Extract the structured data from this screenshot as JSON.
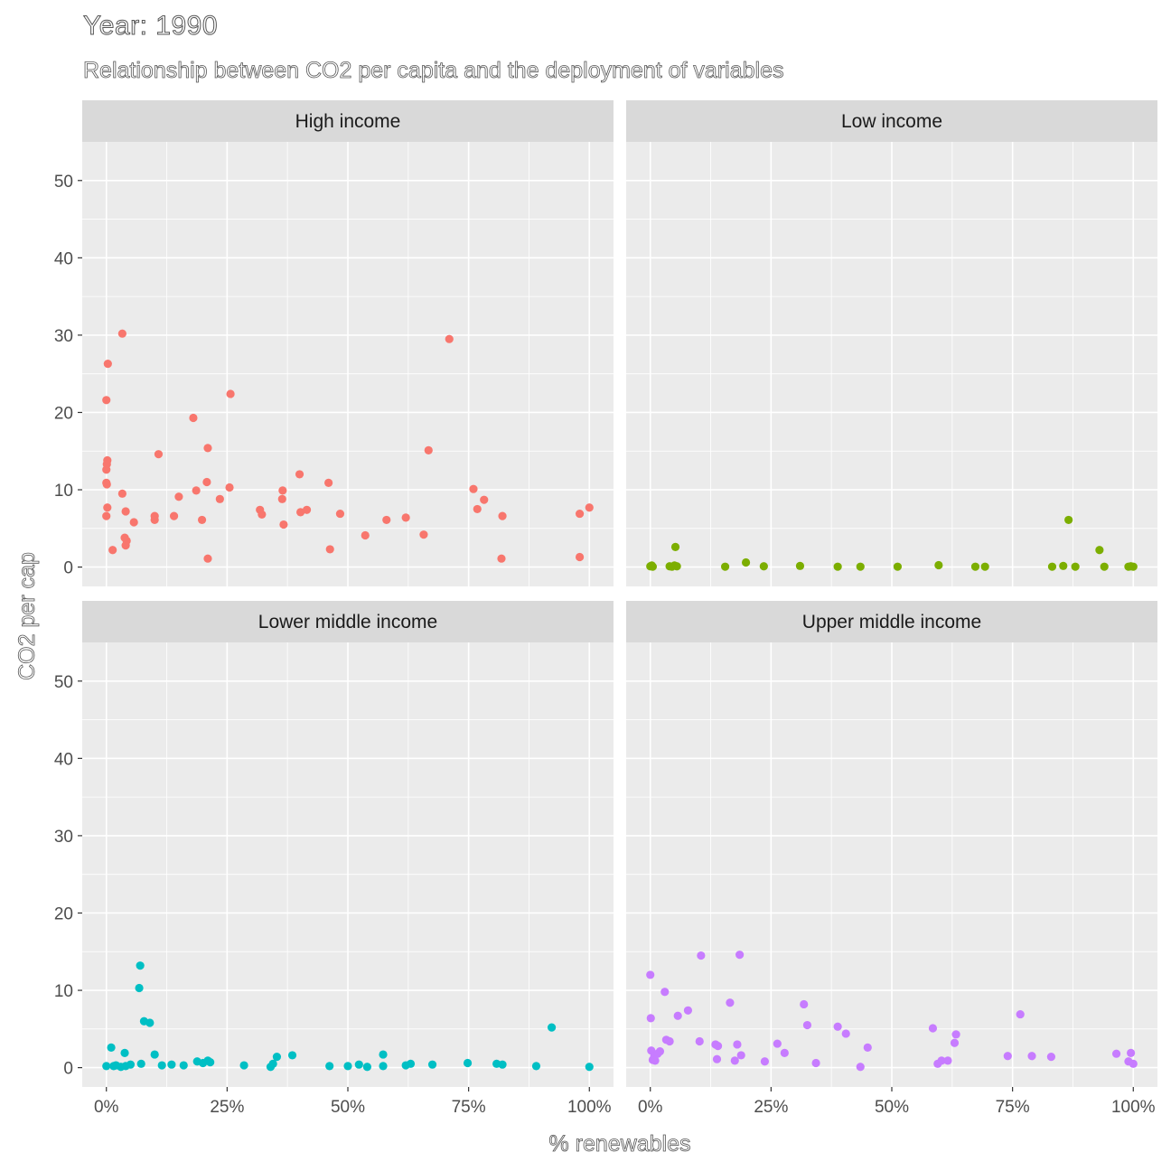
{
  "title": "Year: 1990",
  "subtitle": "Relationship between CO2 per capita and the deployment of variables",
  "colors": {
    "panel_bg": "#ebebeb",
    "strip_bg": "#d9d9d9",
    "grid": "#ffffff",
    "high_income": "#f8766d",
    "low_income": "#7cae00",
    "lower_middle_income": "#00bfc4",
    "upper_middle_income": "#c77cff"
  },
  "chart_data": {
    "type": "scatter",
    "xlabel": "% renewables",
    "ylabel": "CO2 per cap",
    "xlim": [
      -0.05,
      1.05
    ],
    "ylim": [
      -2.5,
      55
    ],
    "x_ticks": [
      0,
      0.25,
      0.5,
      0.75,
      1
    ],
    "x_tick_labels": [
      "0%",
      "25%",
      "50%",
      "75%",
      "100%"
    ],
    "y_ticks": [
      0,
      10,
      20,
      30,
      40,
      50
    ],
    "y_tick_labels": [
      "0",
      "10",
      "20",
      "30",
      "40",
      "50"
    ],
    "grid": true,
    "facets": [
      {
        "name": "High income",
        "color": "#f8766d",
        "points": [
          [
            0.003,
            26.3
          ],
          [
            0.0,
            21.6
          ],
          [
            0.002,
            13.8
          ],
          [
            0.001,
            13.3
          ],
          [
            0.0,
            12.6
          ],
          [
            0.0,
            10.9
          ],
          [
            0.001,
            10.7
          ],
          [
            0.002,
            7.7
          ],
          [
            0.0,
            6.6
          ],
          [
            0.033,
            30.2
          ],
          [
            0.033,
            9.5
          ],
          [
            0.04,
            7.2
          ],
          [
            0.038,
            3.8
          ],
          [
            0.042,
            3.4
          ],
          [
            0.04,
            2.8
          ],
          [
            0.013,
            2.2
          ],
          [
            0.057,
            5.8
          ],
          [
            0.108,
            14.6
          ],
          [
            0.1,
            6.6
          ],
          [
            0.1,
            6.1
          ],
          [
            0.14,
            6.6
          ],
          [
            0.15,
            9.1
          ],
          [
            0.18,
            19.3
          ],
          [
            0.186,
            9.9
          ],
          [
            0.198,
            6.1
          ],
          [
            0.208,
            11.0
          ],
          [
            0.21,
            15.4
          ],
          [
            0.21,
            1.1
          ],
          [
            0.235,
            8.8
          ],
          [
            0.257,
            22.4
          ],
          [
            0.255,
            10.3
          ],
          [
            0.318,
            7.4
          ],
          [
            0.322,
            6.8
          ],
          [
            0.365,
            9.9
          ],
          [
            0.364,
            8.8
          ],
          [
            0.367,
            5.5
          ],
          [
            0.4,
            12.0
          ],
          [
            0.402,
            7.1
          ],
          [
            0.415,
            7.4
          ],
          [
            0.46,
            10.9
          ],
          [
            0.463,
            2.3
          ],
          [
            0.484,
            6.9
          ],
          [
            0.536,
            4.1
          ],
          [
            0.58,
            6.1
          ],
          [
            0.62,
            6.4
          ],
          [
            0.657,
            4.2
          ],
          [
            0.667,
            15.1
          ],
          [
            0.71,
            29.5
          ],
          [
            0.76,
            10.1
          ],
          [
            0.768,
            7.5
          ],
          [
            0.782,
            8.7
          ],
          [
            0.82,
            6.6
          ],
          [
            0.818,
            1.1
          ],
          [
            0.98,
            6.9
          ],
          [
            0.98,
            1.3
          ],
          [
            1.0,
            7.7
          ]
        ]
      },
      {
        "name": "Low income",
        "color": "#7cae00",
        "points": [
          [
            0.0,
            0.1
          ],
          [
            0.003,
            0.2
          ],
          [
            0.005,
            0.05
          ],
          [
            0.002,
            0.15
          ],
          [
            0.04,
            0.1
          ],
          [
            0.045,
            0.05
          ],
          [
            0.05,
            0.2
          ],
          [
            0.052,
            2.6
          ],
          [
            0.055,
            0.1
          ],
          [
            0.155,
            0.05
          ],
          [
            0.198,
            0.6
          ],
          [
            0.235,
            0.1
          ],
          [
            0.31,
            0.15
          ],
          [
            0.388,
            0.05
          ],
          [
            0.435,
            0.05
          ],
          [
            0.512,
            0.05
          ],
          [
            0.597,
            0.25
          ],
          [
            0.673,
            0.05
          ],
          [
            0.693,
            0.05
          ],
          [
            0.832,
            0.05
          ],
          [
            0.855,
            0.15
          ],
          [
            0.866,
            6.1
          ],
          [
            0.88,
            0.05
          ],
          [
            0.93,
            2.2
          ],
          [
            0.94,
            0.05
          ],
          [
            0.99,
            0.05
          ],
          [
            0.995,
            0.1
          ],
          [
            1.0,
            0.05
          ]
        ]
      },
      {
        "name": "Lower middle income",
        "color": "#00bfc4",
        "points": [
          [
            0.0,
            0.2
          ],
          [
            0.01,
            2.6
          ],
          [
            0.015,
            0.2
          ],
          [
            0.02,
            0.3
          ],
          [
            0.03,
            0.1
          ],
          [
            0.038,
            1.9
          ],
          [
            0.04,
            0.2
          ],
          [
            0.05,
            0.4
          ],
          [
            0.07,
            13.2
          ],
          [
            0.068,
            10.3
          ],
          [
            0.072,
            0.5
          ],
          [
            0.078,
            6.0
          ],
          [
            0.09,
            5.8
          ],
          [
            0.1,
            1.7
          ],
          [
            0.115,
            0.3
          ],
          [
            0.135,
            0.4
          ],
          [
            0.16,
            0.3
          ],
          [
            0.188,
            0.8
          ],
          [
            0.2,
            0.6
          ],
          [
            0.21,
            0.9
          ],
          [
            0.215,
            0.7
          ],
          [
            0.285,
            0.3
          ],
          [
            0.34,
            0.1
          ],
          [
            0.345,
            0.5
          ],
          [
            0.353,
            1.4
          ],
          [
            0.385,
            1.6
          ],
          [
            0.462,
            0.2
          ],
          [
            0.5,
            0.2
          ],
          [
            0.523,
            0.4
          ],
          [
            0.54,
            0.1
          ],
          [
            0.573,
            1.7
          ],
          [
            0.573,
            0.2
          ],
          [
            0.62,
            0.3
          ],
          [
            0.63,
            0.5
          ],
          [
            0.675,
            0.4
          ],
          [
            0.748,
            0.6
          ],
          [
            0.808,
            0.5
          ],
          [
            0.82,
            0.4
          ],
          [
            0.89,
            0.2
          ],
          [
            0.922,
            5.2
          ],
          [
            1.0,
            0.1
          ]
        ]
      },
      {
        "name": "Upper middle income",
        "color": "#c77cff",
        "points": [
          [
            0.0,
            12.0
          ],
          [
            0.001,
            6.4
          ],
          [
            0.002,
            2.2
          ],
          [
            0.005,
            1.0
          ],
          [
            0.008,
            1.5
          ],
          [
            0.01,
            0.9
          ],
          [
            0.015,
            1.8
          ],
          [
            0.02,
            2.1
          ],
          [
            0.03,
            9.8
          ],
          [
            0.033,
            3.6
          ],
          [
            0.04,
            3.4
          ],
          [
            0.057,
            6.7
          ],
          [
            0.078,
            7.4
          ],
          [
            0.102,
            3.4
          ],
          [
            0.105,
            14.5
          ],
          [
            0.135,
            3.0
          ],
          [
            0.138,
            1.1
          ],
          [
            0.14,
            2.8
          ],
          [
            0.165,
            8.4
          ],
          [
            0.175,
            0.9
          ],
          [
            0.18,
            3.0
          ],
          [
            0.185,
            14.6
          ],
          [
            0.188,
            1.6
          ],
          [
            0.237,
            0.8
          ],
          [
            0.263,
            3.1
          ],
          [
            0.278,
            1.9
          ],
          [
            0.318,
            8.2
          ],
          [
            0.325,
            5.5
          ],
          [
            0.343,
            0.6
          ],
          [
            0.388,
            5.3
          ],
          [
            0.405,
            4.4
          ],
          [
            0.435,
            0.1
          ],
          [
            0.45,
            2.6
          ],
          [
            0.585,
            5.1
          ],
          [
            0.595,
            0.5
          ],
          [
            0.603,
            0.9
          ],
          [
            0.616,
            0.9
          ],
          [
            0.63,
            3.2
          ],
          [
            0.633,
            4.3
          ],
          [
            0.74,
            1.5
          ],
          [
            0.766,
            6.9
          ],
          [
            0.79,
            1.5
          ],
          [
            0.83,
            1.4
          ],
          [
            0.965,
            1.8
          ],
          [
            0.99,
            0.8
          ],
          [
            0.995,
            1.9
          ],
          [
            1.0,
            0.5
          ]
        ]
      }
    ]
  }
}
